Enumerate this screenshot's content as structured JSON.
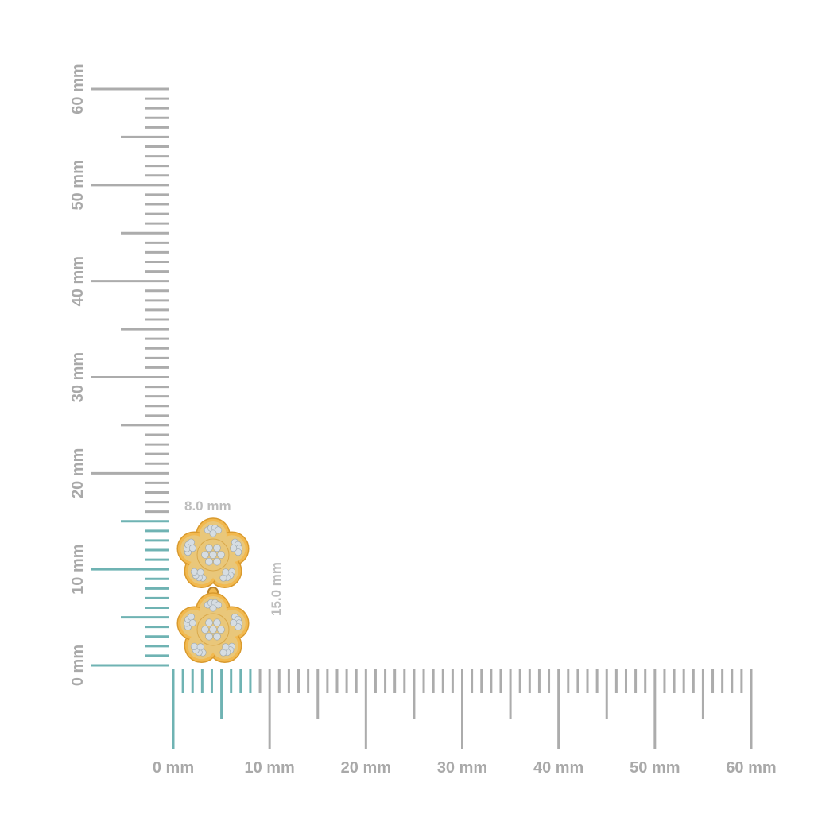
{
  "rulers": {
    "unit": "mm",
    "max": 60,
    "horizontal_labels": [
      "0 mm",
      "10 mm",
      "20 mm",
      "30 mm",
      "40 mm",
      "50 mm",
      "60 mm"
    ],
    "vertical_labels": [
      "0 mm",
      "10 mm",
      "20 mm",
      "30 mm",
      "40 mm",
      "50 mm",
      "60 mm"
    ],
    "highlight_width_mm": 8.0,
    "highlight_height_mm": 15.0,
    "tick_color": "#acacac",
    "highlight_color": "#6fb3b3"
  },
  "product": {
    "name_icon": "flower-earring-image",
    "width_label": "8.0 mm",
    "height_label": "15.0 mm",
    "metal_color": "#f2b94f",
    "stone_color": "#d6dde2"
  }
}
